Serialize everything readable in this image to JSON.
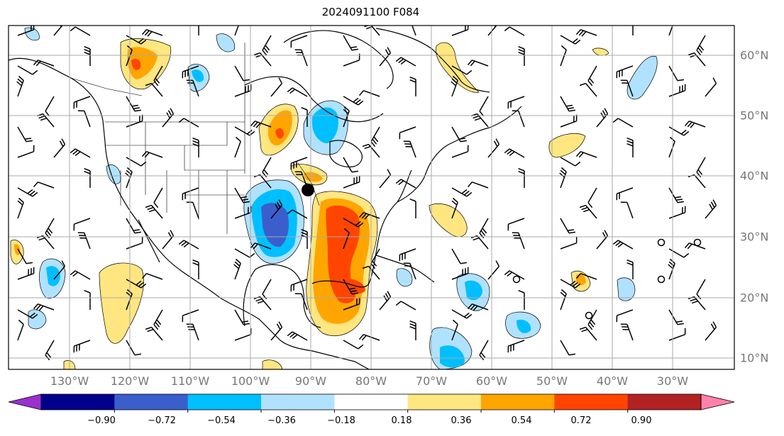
{
  "title": "2024091100 F084",
  "lon_labels": [
    "130°W",
    "120°W",
    "110°W",
    "100°W",
    "90°W",
    "80°W",
    "70°W",
    "60°W",
    "50°W",
    "40°W",
    "30°W"
  ],
  "lat_labels": [
    "60°N",
    "50°N",
    "40°N",
    "30°N",
    "20°N",
    "10°N"
  ],
  "colorbar": {
    "ticks": [
      "−0.90",
      "−0.72",
      "−0.54",
      "−0.36",
      "−0.18",
      "0.18",
      "0.36",
      "0.54",
      "0.72",
      "0.90"
    ],
    "colors": [
      "#9b30d0",
      "#00008b",
      "#3a5fcd",
      "#00bfff",
      "#b0e2ff",
      "#ffffff",
      "#ffe680",
      "#ffa500",
      "#ff4500",
      "#b22222",
      "#ff82ab"
    ]
  },
  "colors": {
    "light_blue": "#b0e2ff",
    "mid_blue": "#00bfff",
    "royal_blue": "#3a5fcd",
    "light_yellow": "#ffe680",
    "orange": "#ffa500",
    "red_orange": "#ff4500",
    "grid": "#aaaaaa",
    "coast": "#000000"
  },
  "marker": "black-dot"
}
